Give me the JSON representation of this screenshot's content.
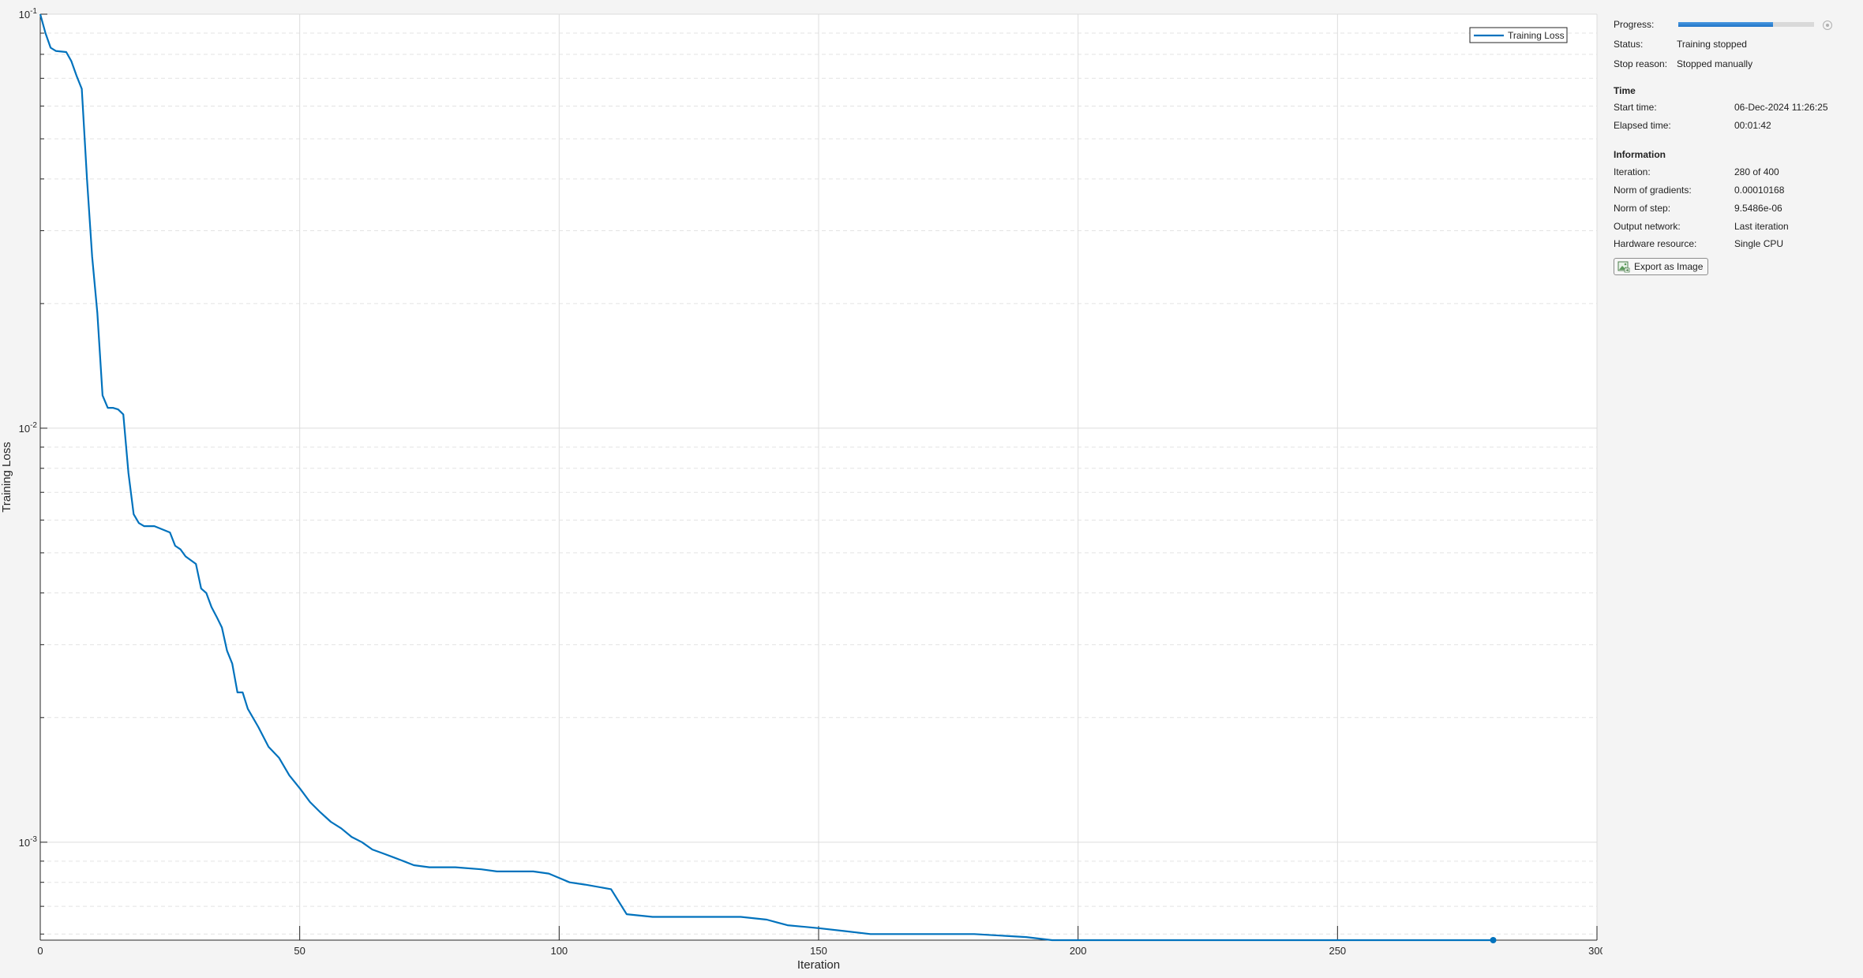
{
  "plot": {
    "legend_label": "Training Loss"
  },
  "chart_data": {
    "type": "line",
    "xlabel": "Iteration",
    "ylabel": "Training Loss",
    "xlim": [
      0,
      300
    ],
    "ylim": [
      0.00058,
      0.1
    ],
    "yscale": "log",
    "grid": true,
    "legend": "top-right",
    "x_ticks": [
      0,
      50,
      100,
      150,
      200,
      250,
      300
    ],
    "y_ticks": [
      {
        "value": 0.001,
        "base": "10",
        "exp": "-3"
      },
      {
        "value": 0.01,
        "base": "10",
        "exp": "-2"
      },
      {
        "value": 0.1,
        "base": "10",
        "exp": "-1"
      }
    ],
    "series": [
      {
        "name": "Training Loss",
        "color": "#0072bd",
        "x": [
          0,
          1,
          2,
          3,
          5,
          6,
          7,
          8,
          9,
          10,
          11,
          12,
          13,
          14,
          15,
          16,
          17,
          18,
          19,
          20,
          22,
          25,
          26,
          27,
          28,
          30,
          31,
          32,
          33,
          34,
          35,
          36,
          37,
          38,
          39,
          40,
          42,
          44,
          46,
          48,
          50,
          52,
          54,
          56,
          58,
          60,
          62,
          64,
          66,
          68,
          70,
          72,
          75,
          80,
          85,
          88,
          90,
          95,
          98,
          100,
          102,
          105,
          110,
          113,
          118,
          125,
          135,
          140,
          142,
          144,
          150,
          155,
          160,
          170,
          180,
          190,
          195,
          200,
          220,
          250,
          280
        ],
        "y": [
          0.1,
          0.09,
          0.083,
          0.0815,
          0.081,
          0.077,
          0.071,
          0.066,
          0.04,
          0.026,
          0.019,
          0.012,
          0.0112,
          0.0112,
          0.0111,
          0.0108,
          0.0078,
          0.0062,
          0.0059,
          0.0058,
          0.0058,
          0.0056,
          0.0052,
          0.0051,
          0.0049,
          0.0047,
          0.0041,
          0.004,
          0.0037,
          0.0035,
          0.0033,
          0.0029,
          0.0027,
          0.0023,
          0.0023,
          0.0021,
          0.0019,
          0.0017,
          0.0016,
          0.00145,
          0.00135,
          0.00125,
          0.00118,
          0.00112,
          0.00108,
          0.00103,
          0.001,
          0.00096,
          0.00094,
          0.00092,
          0.0009,
          0.00088,
          0.00087,
          0.00087,
          0.00086,
          0.00085,
          0.00085,
          0.00085,
          0.00084,
          0.00082,
          0.0008,
          0.00079,
          0.00077,
          0.00067,
          0.00066,
          0.00066,
          0.00066,
          0.00065,
          0.00064,
          0.00063,
          0.00062,
          0.00061,
          0.0006,
          0.0006,
          0.0006,
          0.00059,
          0.00058,
          0.00058,
          0.00058,
          0.00058,
          0.00058
        ]
      }
    ],
    "marker": {
      "x": 280,
      "y": 0.00058
    }
  },
  "panel": {
    "progress_label": "Progress:",
    "progress_fraction": 0.7,
    "status_label": "Status:",
    "status_value": "Training stopped",
    "stop_reason_label": "Stop reason:",
    "stop_reason_value": "Stopped manually",
    "time_heading": "Time",
    "start_time_label": "Start time:",
    "start_time_value": "06-Dec-2024 11:26:25",
    "elapsed_time_label": "Elapsed time:",
    "elapsed_time_value": "00:01:42",
    "info_heading": "Information",
    "iteration_label": "Iteration:",
    "iteration_value": "280 of 400",
    "norm_grad_label": "Norm of gradients:",
    "norm_grad_value": "0.00010168",
    "norm_step_label": "Norm of step:",
    "norm_step_value": "9.5486e-06",
    "output_network_label": "Output network:",
    "output_network_value": "Last iteration",
    "hardware_label": "Hardware resource:",
    "hardware_value": "Single CPU",
    "export_label": "Export as Image",
    "export_icon": "image-export-icon",
    "stop_icon": "stop-training-icon"
  }
}
